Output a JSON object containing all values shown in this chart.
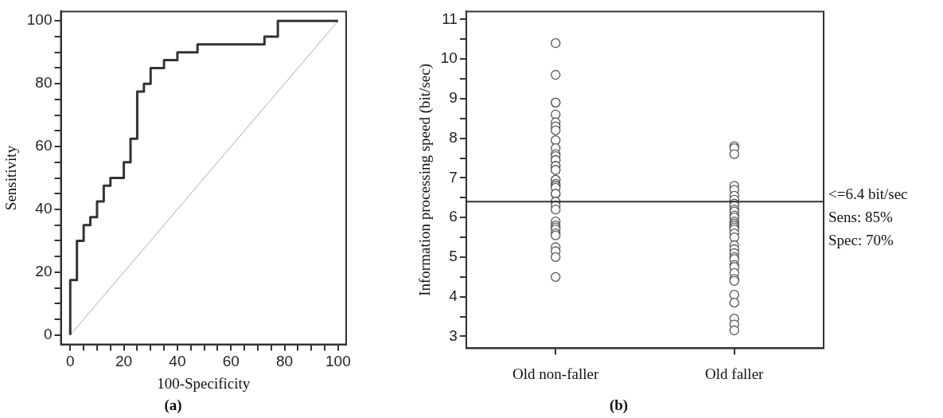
{
  "chart_data": [
    {
      "type": "step",
      "title": "(a)",
      "xlabel": "100-Specificity",
      "ylabel": "Sensitivity",
      "xlim": [
        -3.5,
        103
      ],
      "ylim": [
        -3,
        103
      ],
      "xticks": [
        0,
        {
          "value": 5,
          "label": null
        },
        {
          "value": 10,
          "label": null
        },
        {
          "value": 15,
          "label": null
        },
        20,
        {
          "value": 25,
          "label": null
        },
        {
          "value": 30,
          "label": null
        },
        {
          "value": 35,
          "label": null
        },
        40,
        {
          "value": 45,
          "label": null
        },
        {
          "value": 50,
          "label": null
        },
        {
          "value": 55,
          "label": null
        },
        60,
        {
          "value": 65,
          "label": null
        },
        {
          "value": 70,
          "label": null
        },
        {
          "value": 75,
          "label": null
        },
        80,
        {
          "value": 85,
          "label": null
        },
        {
          "value": 90,
          "label": null
        },
        {
          "value": 95,
          "label": null
        },
        100
      ],
      "yticks": [
        0,
        {
          "value": 5,
          "label": null
        },
        {
          "value": 10,
          "label": null
        },
        {
          "value": 15,
          "label": null
        },
        20,
        {
          "value": 25,
          "label": null
        },
        {
          "value": 30,
          "label": null
        },
        {
          "value": 35,
          "label": null
        },
        40,
        {
          "value": 45,
          "label": null
        },
        {
          "value": 50,
          "label": null
        },
        {
          "value": 55,
          "label": null
        },
        60,
        {
          "value": 65,
          "label": null
        },
        {
          "value": 70,
          "label": null
        },
        {
          "value": 75,
          "label": null
        },
        80,
        {
          "value": 85,
          "label": null
        },
        {
          "value": 90,
          "label": null
        },
        {
          "value": 95,
          "label": null
        },
        100
      ],
      "grid": false,
      "legend": false,
      "marker": "none",
      "series": [
        {
          "color": "#333333",
          "x": [
            0,
            0,
            2.5,
            5,
            7.5,
            10,
            12.5,
            15,
            20,
            22.5,
            25,
            27.5,
            30,
            35,
            40,
            47.5,
            72.5,
            77.5,
            100
          ],
          "values": [
            0,
            17.5,
            30,
            35,
            37.5,
            42.5,
            47.5,
            50,
            55,
            62.5,
            77.5,
            80,
            85,
            87.5,
            90,
            92.5,
            95,
            100,
            100
          ]
        },
        {
          "type": "line",
          "color": "#aaaaaa",
          "x": [
            0,
            100
          ],
          "values": [
            0,
            100
          ]
        }
      ]
    },
    {
      "type": "scatter",
      "title": "(b)",
      "ylabel": "Information processing speed (bit/sec)",
      "categories": [
        "Old non-faller",
        "Old faller"
      ],
      "ylim": [
        2.7,
        11.2
      ],
      "yticks": [
        3,
        {
          "value": 3.5,
          "label": null
        },
        4,
        {
          "value": 4.5,
          "label": null
        },
        5,
        {
          "value": 5.5,
          "label": null
        },
        6,
        {
          "value": 6.5,
          "label": null
        },
        7,
        {
          "value": 7.5,
          "label": null
        },
        8,
        {
          "value": 8.5,
          "label": null
        },
        9,
        {
          "value": 9.5,
          "label": null
        },
        10,
        {
          "value": 10.5,
          "label": null
        },
        11
      ],
      "grid": false,
      "legend": false,
      "marker": "circle",
      "ref_lines": [
        {
          "axis": "y",
          "value": 6.4,
          "label": "<=6.4 bit/sec",
          "color": "#333333"
        }
      ],
      "annotations": [
        "Sens: 85%",
        "Spec: 70%"
      ],
      "series": [
        {
          "color": "#555555",
          "x": [
            "Old non-faller",
            "Old non-faller",
            "Old non-faller",
            "Old non-faller",
            "Old non-faller",
            "Old non-faller",
            "Old non-faller",
            "Old non-faller",
            "Old non-faller",
            "Old non-faller",
            "Old non-faller",
            "Old non-faller",
            "Old non-faller",
            "Old non-faller",
            "Old non-faller",
            "Old non-faller",
            "Old non-faller",
            "Old non-faller",
            "Old non-faller",
            "Old non-faller",
            "Old non-faller",
            "Old non-faller",
            "Old non-faller",
            "Old non-faller",
            "Old non-faller",
            "Old non-faller",
            "Old non-faller",
            "Old non-faller",
            "Old non-faller",
            "Old non-faller",
            "Old non-faller",
            "Old non-faller",
            "Old non-faller",
            "Old non-faller",
            "Old non-faller",
            "Old non-faller",
            "Old non-faller",
            "Old non-faller",
            "Old non-faller",
            "Old non-faller",
            "Old faller",
            "Old faller",
            "Old faller",
            "Old faller",
            "Old faller",
            "Old faller",
            "Old faller",
            "Old faller",
            "Old faller",
            "Old faller",
            "Old faller",
            "Old faller",
            "Old faller",
            "Old faller",
            "Old faller",
            "Old faller",
            "Old faller",
            "Old faller",
            "Old faller",
            "Old faller",
            "Old faller",
            "Old faller",
            "Old faller",
            "Old faller",
            "Old faller",
            "Old faller",
            "Old faller",
            "Old faller",
            "Old faller",
            "Old faller",
            "Old faller",
            "Old faller",
            "Old faller",
            "Old faller",
            "Old faller",
            "Old faller"
          ],
          "values": [
            10.4,
            9.6,
            8.9,
            8.9,
            8.6,
            8.4,
            8.3,
            8.2,
            7.95,
            7.75,
            7.6,
            7.55,
            7.45,
            7.45,
            7.3,
            7.3,
            7.2,
            7.2,
            6.95,
            6.95,
            6.85,
            6.8,
            6.8,
            6.75,
            6.6,
            6.6,
            6.4,
            6.4,
            6.3,
            6.2,
            5.9,
            5.8,
            5.75,
            5.7,
            5.6,
            5.55,
            5.25,
            5.15,
            5.0,
            4.5,
            7.8,
            7.75,
            7.6,
            6.8,
            6.7,
            6.55,
            6.45,
            6.35,
            6.3,
            6.2,
            6.15,
            6.05,
            6.0,
            5.9,
            5.85,
            5.8,
            5.8,
            5.75,
            5.7,
            5.6,
            5.5,
            5.3,
            5.2,
            5.1,
            5.0,
            4.95,
            4.8,
            4.75,
            4.6,
            4.45,
            4.4,
            4.05,
            3.85,
            3.45,
            3.3,
            3.15
          ]
        }
      ]
    }
  ]
}
